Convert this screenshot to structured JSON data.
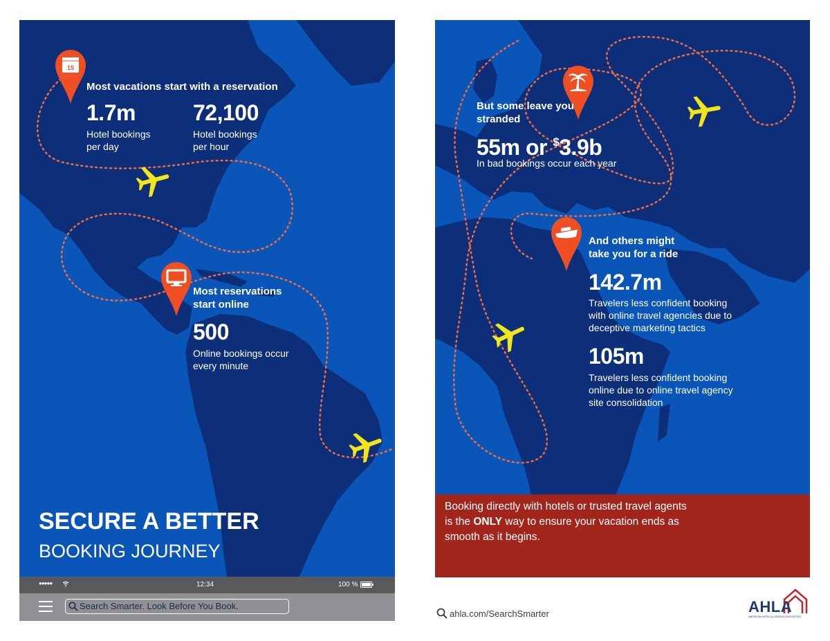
{
  "left": {
    "stop1": {
      "calendar_day": "15",
      "heading": "Most vacations start with a reservation",
      "stats": [
        {
          "value": "1.7m",
          "line1": "Hotel bookings",
          "line2": "per day"
        },
        {
          "value": "72,100",
          "line1": "Hotel bookings",
          "line2": "per hour"
        }
      ]
    },
    "stop2": {
      "heading_line1": "Most reservations",
      "heading_line2": "start online",
      "value": "500",
      "line1": "Online bookings occur",
      "line2": "every minute"
    },
    "title_line1": "SECURE A BETTER",
    "title_line2": "BOOKING JOURNEY",
    "status_bar": {
      "signal": "●●●●●",
      "time": "12:34",
      "battery": "100 %"
    },
    "search": {
      "text": "Search Smarter. Look Before You Book."
    }
  },
  "right": {
    "stop3": {
      "heading_line1": "But some leave you",
      "heading_line2": "stranded",
      "value_main": "55m or ",
      "value_currency": "$",
      "value_amount": "3.9b",
      "caption": "In bad bookings occur each year"
    },
    "stop4": {
      "heading_line1": "And others might",
      "heading_line2": "take you for a ride",
      "stat1": {
        "value": "142.7m",
        "line1": "Travelers less confident booking",
        "line2": "with online travel agencies due to",
        "line3": "deceptive marketing tactics"
      },
      "stat2": {
        "value": "105m",
        "line1": "Travelers less confident booking",
        "line2": "online due to online travel agency",
        "line3": "site consolidation"
      }
    },
    "cta": {
      "line1": "Booking directly with hotels or trusted travel agents",
      "line2_pre": "is the ",
      "line2_bold": "ONLY",
      "line2_post": " way to ensure your vacation ends as",
      "line3": "smooth as it begins."
    }
  },
  "footer": {
    "url": "ahla.com/SearchSmarter",
    "logo_text": "AHLA",
    "logo_sub": "AMERICAN HOTEL & LODGING ASSOCIATION"
  },
  "colors": {
    "ocean": "#0a56b8",
    "land": "#0d2f7a",
    "pin": "#f04e23",
    "plane": "#f2e51c",
    "route": "#f26a3d",
    "cta": "#a2251b"
  }
}
